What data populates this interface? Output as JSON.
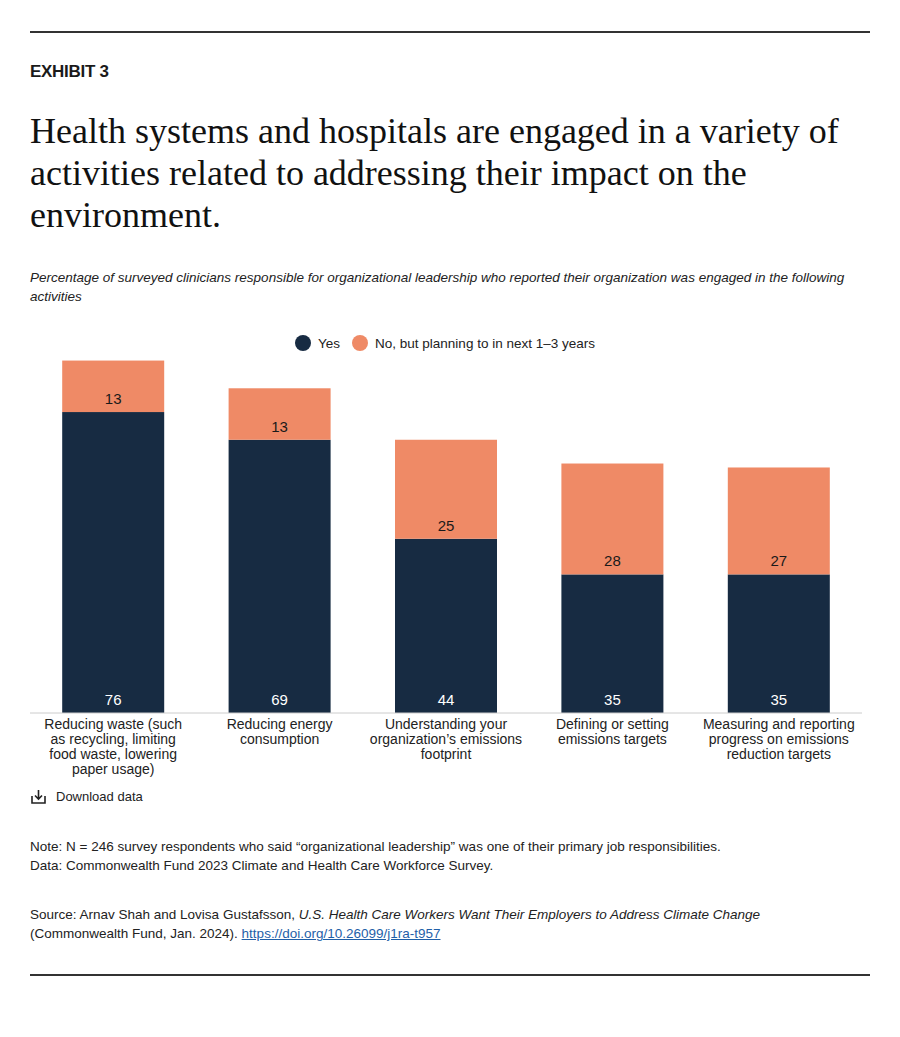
{
  "chart_data": {
    "type": "bar",
    "stacked": true,
    "data_labels": true,
    "tick_labels": "x",
    "exhibit": "EXHIBIT 3",
    "title": "Health systems and hospitals are engaged in a variety of activities related to addressing their impact on the environment.",
    "subtitle": "Percentage of surveyed clinicians responsible for organizational leadership who reported their organization was engaged in the following activities",
    "categories": [
      "Reducing waste (such as recycling, limiting food waste, lowering paper usage)",
      "Reducing energy consumption",
      "Understanding your organization’s emissions footprint",
      "Defining or setting emissions targets",
      "Measuring and reporting progress on emissions reduction targets"
    ],
    "series": [
      {
        "name": "Yes",
        "color": "#172b42",
        "values": [
          76,
          69,
          44,
          35,
          35
        ]
      },
      {
        "name": "No, but planning to in next 1–3 years",
        "color": "#ef8a66",
        "values": [
          13,
          13,
          25,
          28,
          27
        ]
      }
    ],
    "ylim": [
      0,
      100
    ],
    "legend": "top",
    "download_label": "Download data",
    "note": "Note: N = 246 survey respondents who said “organizational leadership” was one of their primary job responsibilities.",
    "data_source": "Data: Commonwealth Fund 2023 Climate and Health Care Workforce Survey.",
    "source": {
      "prefix": "Source: Arnav Shah and Lovisa Gustafsson, ",
      "title": "U.S. Health Care Workers Want Their Employers to Address Climate Change",
      "suffix": " (Commonwealth Fund, Jan. 2024). ",
      "link": "https://doi.org/10.26099/j1ra-t957"
    }
  }
}
